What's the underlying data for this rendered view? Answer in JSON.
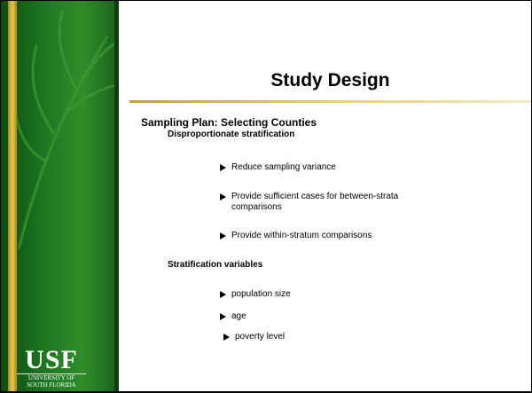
{
  "header": {
    "title": "Study Design"
  },
  "section": {
    "heading": "Sampling Plan: Selecting Counties",
    "subsections": [
      {
        "title": "Disproportionate stratification",
        "bullets": [
          "Reduce sampling variance",
          "Provide sufficient cases for between-strata comparisons",
          "Provide within-stratum comparisons"
        ]
      },
      {
        "title": "Stratification variables",
        "bullets": [
          "population size",
          "age",
          "poverty level"
        ]
      }
    ]
  },
  "logo": {
    "name": "USF",
    "line1": "UNIVERSITY OF",
    "line2": "SOUTH FLORIDA"
  }
}
